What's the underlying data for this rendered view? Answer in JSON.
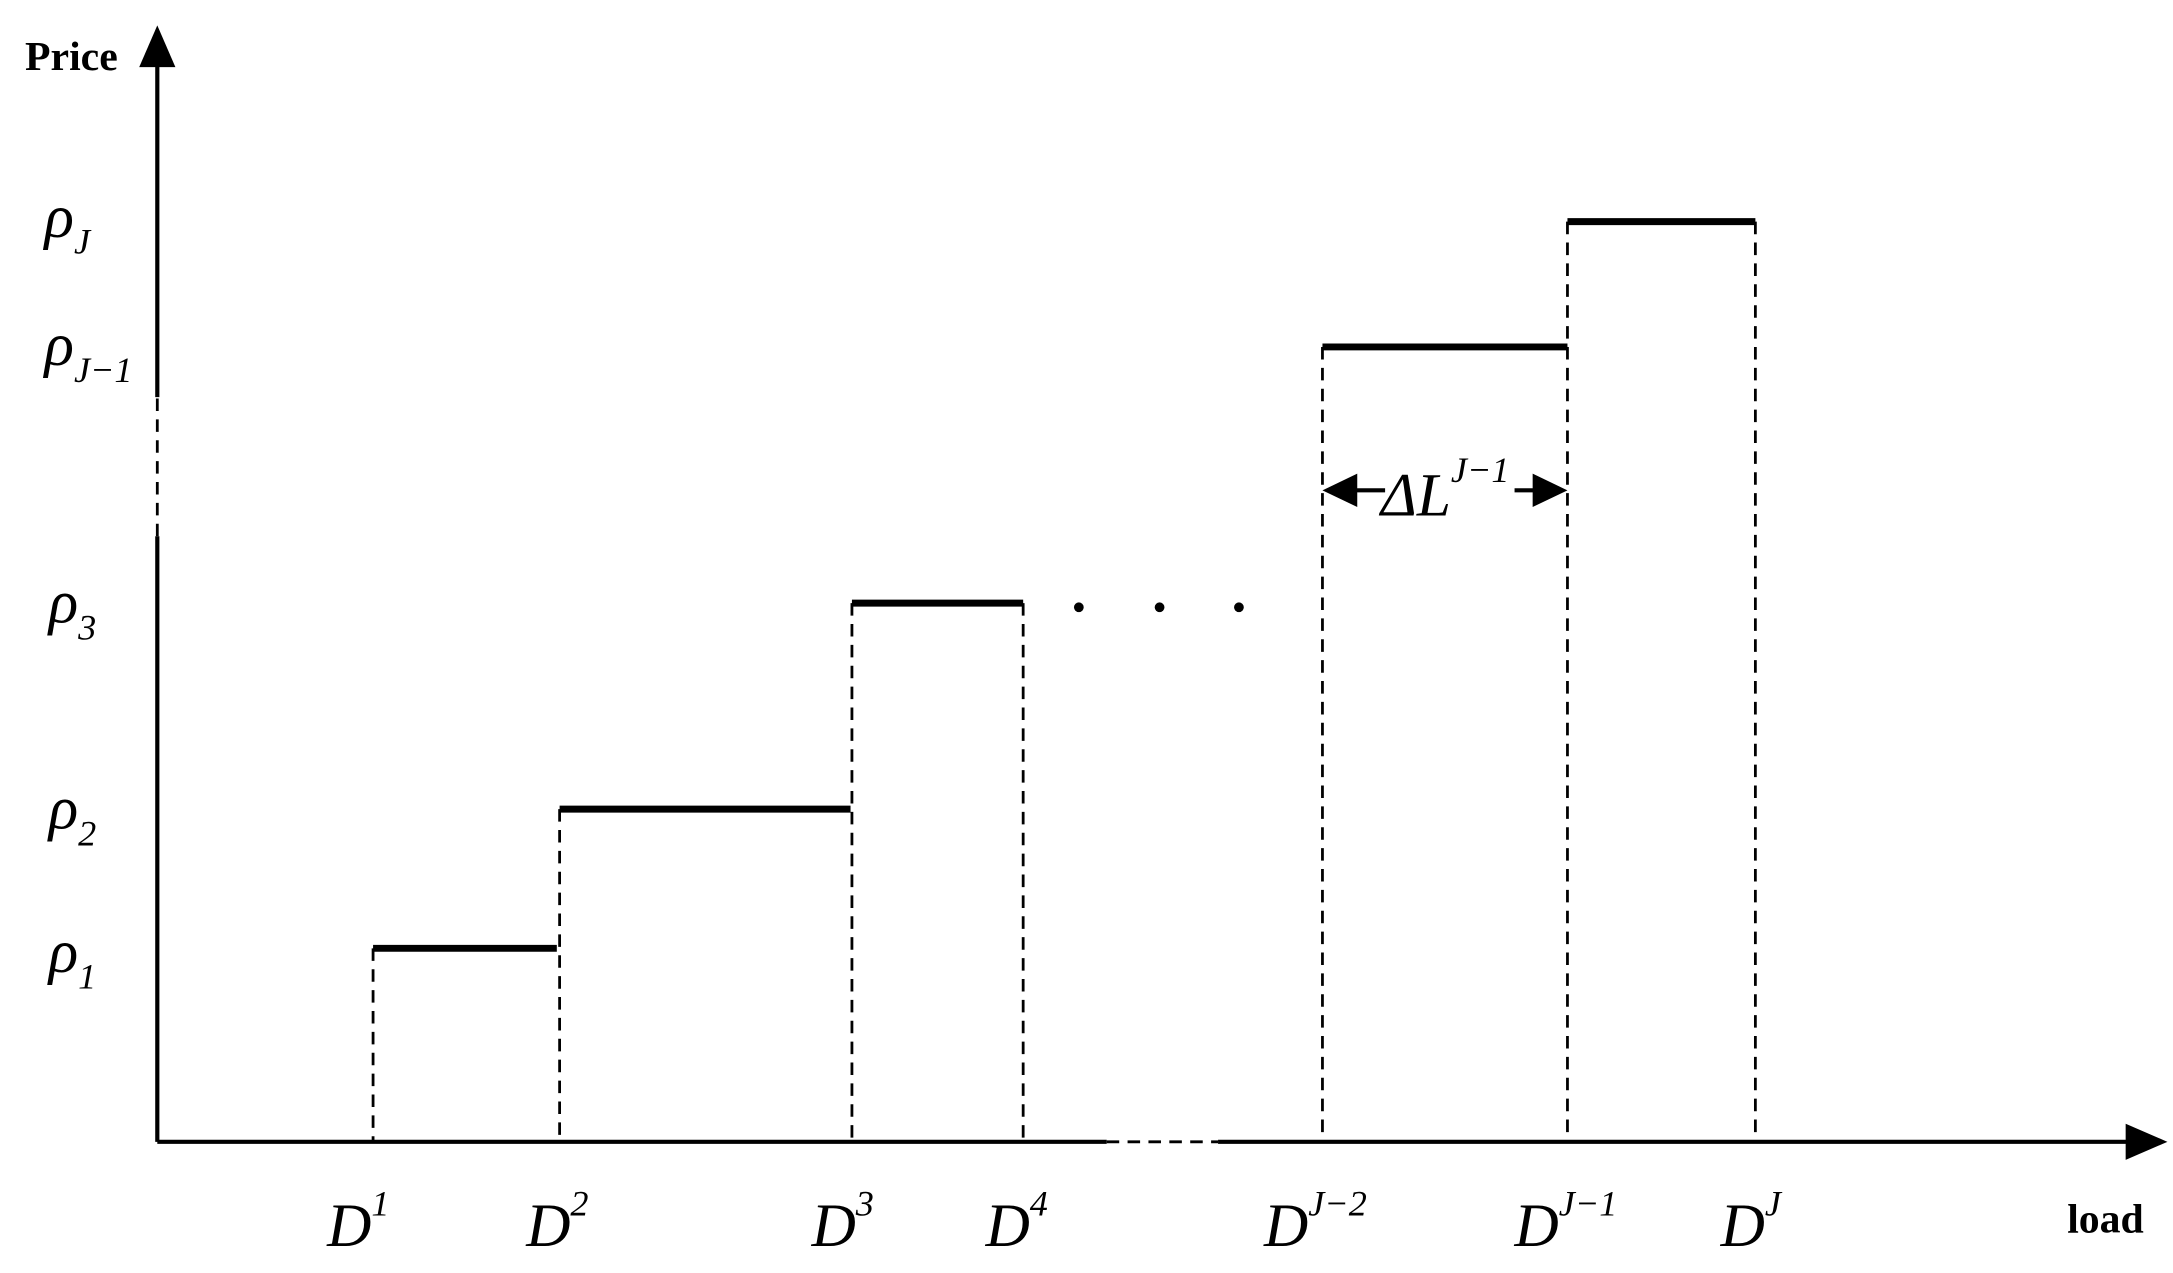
{
  "axes": {
    "y_title": "Price",
    "x_title": "load"
  },
  "y_labels": [
    {
      "base": "ρ",
      "sub": "J"
    },
    {
      "base": "ρ",
      "sub": "J−1"
    },
    {
      "base": "ρ",
      "sub": "3"
    },
    {
      "base": "ρ",
      "sub": "2"
    },
    {
      "base": "ρ",
      "sub": "1"
    }
  ],
  "x_labels": [
    {
      "base": "D",
      "sup": "1"
    },
    {
      "base": "D",
      "sup": "2"
    },
    {
      "base": "D",
      "sup": "3"
    },
    {
      "base": "D",
      "sup": "4"
    },
    {
      "base": "D",
      "sup": "J−2"
    },
    {
      "base": "D",
      "sup": "J−1"
    },
    {
      "base": "D",
      "sup": "J"
    }
  ],
  "interval": {
    "base": "ΔL",
    "sup": "J−1"
  }
}
